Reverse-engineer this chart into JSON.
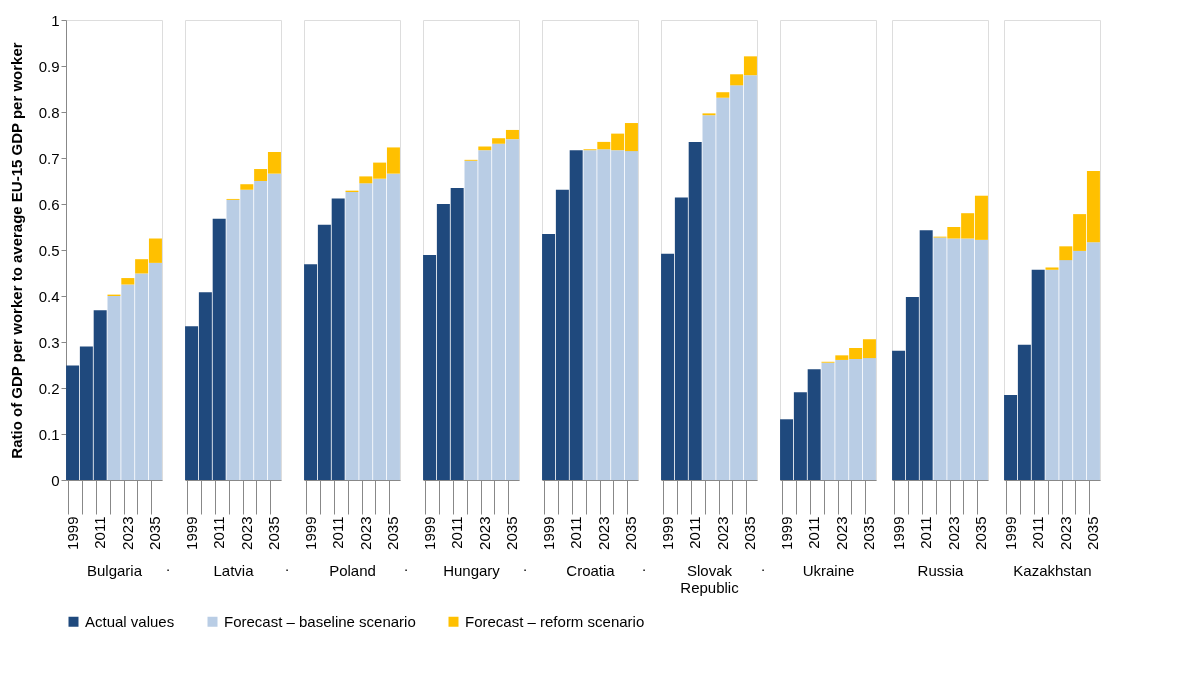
{
  "chart_data": [
    {
      "type": "bar",
      "stacked": true,
      "legend": "bottom",
      "xlabel": "Bulgaria",
      "ylabel": "Ratio of GDP per worker to average EU-15 GDP per worker",
      "ylim": [
        0,
        1
      ],
      "yticks": [
        0,
        0.1,
        0.2,
        0.3,
        0.4,
        0.5,
        0.6,
        0.7,
        0.8,
        0.9,
        1
      ],
      "annotations": [
        "."
      ],
      "categories": [
        "1999",
        null,
        "2011",
        null,
        "2023",
        null,
        "2035"
      ],
      "series": [
        {
          "name": "Actual values",
          "color": "#1f497d",
          "values": [
            0.249,
            0.29,
            0.369,
            null,
            null,
            null,
            null
          ]
        },
        {
          "name": "Forecast – baseline scenario",
          "color": "#b9cde5",
          "values": [
            null,
            null,
            null,
            0.4,
            0.425,
            0.449,
            0.472
          ]
        },
        {
          "name": "Forecast – reform scenario",
          "color": "#ffc000",
          "values": [
            null,
            null,
            null,
            0.003,
            0.014,
            0.031,
            0.053
          ]
        }
      ]
    },
    {
      "type": "bar",
      "stacked": true,
      "legend": "bottom",
      "xlabel": "Latvia",
      "tick_labels": "x",
      "ylim": [
        0,
        1
      ],
      "annotations": [
        "."
      ],
      "categories": [
        "1999",
        null,
        "2011",
        null,
        "2023",
        null,
        "2035"
      ],
      "series": [
        {
          "name": "Actual values",
          "color": "#1f497d",
          "values": [
            0.334,
            0.408,
            0.568,
            null,
            null,
            null,
            null
          ]
        },
        {
          "name": "Forecast – baseline scenario",
          "color": "#b9cde5",
          "values": [
            null,
            null,
            null,
            0.609,
            0.631,
            0.65,
            0.666
          ]
        },
        {
          "name": "Forecast – reform scenario",
          "color": "#ffc000",
          "values": [
            null,
            null,
            null,
            0.002,
            0.012,
            0.026,
            0.047
          ]
        }
      ]
    },
    {
      "type": "bar",
      "stacked": true,
      "legend": "bottom",
      "xlabel": "Poland",
      "tick_labels": "x",
      "ylim": [
        0,
        1
      ],
      "annotations": [
        "."
      ],
      "categories": [
        "1999",
        null,
        "2011",
        null,
        "2023",
        null,
        "2035"
      ],
      "series": [
        {
          "name": "Actual values",
          "color": "#1f497d",
          "values": [
            0.469,
            0.555,
            0.612,
            null,
            null,
            null,
            null
          ]
        },
        {
          "name": "Forecast – baseline scenario",
          "color": "#b9cde5",
          "values": [
            null,
            null,
            null,
            0.626,
            0.645,
            0.655,
            0.666
          ]
        },
        {
          "name": "Forecast – reform scenario",
          "color": "#ffc000",
          "values": [
            null,
            null,
            null,
            0.003,
            0.015,
            0.035,
            0.057
          ]
        }
      ]
    },
    {
      "type": "bar",
      "stacked": true,
      "legend": "bottom",
      "xlabel": "Hungary",
      "tick_labels": "x",
      "ylim": [
        0,
        1
      ],
      "annotations": [
        "."
      ],
      "categories": [
        "1999",
        null,
        "2011",
        null,
        "2023",
        null,
        "2035"
      ],
      "series": [
        {
          "name": "Actual values",
          "color": "#1f497d",
          "values": [
            0.489,
            0.6,
            0.635,
            null,
            null,
            null,
            null
          ]
        },
        {
          "name": "Forecast – baseline scenario",
          "color": "#b9cde5",
          "values": [
            null,
            null,
            null,
            0.694,
            0.717,
            0.731,
            0.741
          ]
        },
        {
          "name": "Forecast – reform scenario",
          "color": "#ffc000",
          "values": [
            null,
            null,
            null,
            0.002,
            0.008,
            0.012,
            0.02
          ]
        }
      ]
    },
    {
      "type": "bar",
      "stacked": true,
      "legend": "bottom",
      "xlabel": "Croatia",
      "tick_labels": "x",
      "ylim": [
        0,
        1
      ],
      "annotations": [
        "."
      ],
      "categories": [
        "1999",
        null,
        "2011",
        null,
        "2023",
        null,
        "2035"
      ],
      "series": [
        {
          "name": "Actual values",
          "color": "#1f497d",
          "values": [
            0.535,
            0.631,
            0.717,
            null,
            null,
            null,
            null
          ]
        },
        {
          "name": "Forecast – baseline scenario",
          "color": "#b9cde5",
          "values": [
            null,
            null,
            null,
            0.717,
            0.719,
            0.717,
            0.715
          ]
        },
        {
          "name": "Forecast – reform scenario",
          "color": "#ffc000",
          "values": [
            null,
            null,
            null,
            0.002,
            0.016,
            0.036,
            0.061
          ]
        }
      ]
    },
    {
      "type": "bar",
      "stacked": true,
      "legend": "bottom",
      "xlabel": "Slovak Republic",
      "tick_labels": "x",
      "ylim": [
        0,
        1
      ],
      "annotations": [
        "."
      ],
      "categories": [
        "1999",
        null,
        "2011",
        null,
        "2023",
        null,
        "2035"
      ],
      "series": [
        {
          "name": "Actual values",
          "color": "#1f497d",
          "values": [
            0.492,
            0.614,
            0.735,
            null,
            null,
            null,
            null
          ]
        },
        {
          "name": "Forecast – baseline scenario",
          "color": "#b9cde5",
          "values": [
            null,
            null,
            null,
            0.793,
            0.831,
            0.858,
            0.88
          ]
        },
        {
          "name": "Forecast – reform scenario",
          "color": "#ffc000",
          "values": [
            null,
            null,
            null,
            0.004,
            0.012,
            0.024,
            0.041
          ]
        }
      ]
    },
    {
      "type": "bar",
      "stacked": true,
      "legend": "bottom",
      "xlabel": "Ukraine",
      "tick_labels": "x",
      "ylim": [
        0,
        1
      ],
      "categories": [
        "1999",
        null,
        "2011",
        null,
        "2023",
        null,
        "2035"
      ],
      "series": [
        {
          "name": "Actual values",
          "color": "#1f497d",
          "values": [
            0.132,
            0.191,
            0.241,
            null,
            null,
            null,
            null
          ]
        },
        {
          "name": "Forecast – baseline scenario",
          "color": "#b9cde5",
          "values": [
            null,
            null,
            null,
            0.255,
            0.261,
            0.263,
            0.265
          ]
        },
        {
          "name": "Forecast – reform scenario",
          "color": "#ffc000",
          "values": [
            null,
            null,
            null,
            0.002,
            0.01,
            0.024,
            0.041
          ]
        }
      ]
    },
    {
      "type": "bar",
      "stacked": true,
      "legend": "bottom",
      "xlabel": "Russia",
      "tick_labels": "x",
      "ylim": [
        0,
        1
      ],
      "categories": [
        "1999",
        null,
        "2011",
        null,
        "2023",
        null,
        "2035"
      ],
      "series": [
        {
          "name": "Actual values",
          "color": "#1f497d",
          "values": [
            0.281,
            0.398,
            0.543,
            null,
            null,
            null,
            null
          ]
        },
        {
          "name": "Forecast – baseline scenario",
          "color": "#b9cde5",
          "values": [
            null,
            null,
            null,
            0.527,
            0.525,
            0.525,
            0.522
          ]
        },
        {
          "name": "Forecast – reform scenario",
          "color": "#ffc000",
          "values": [
            null,
            null,
            null,
            0.002,
            0.025,
            0.055,
            0.096
          ]
        }
      ]
    },
    {
      "type": "bar",
      "stacked": true,
      "legend": "bottom",
      "xlabel": "Kazakhstan",
      "tick_labels": "x",
      "ylim": [
        0,
        1
      ],
      "categories": [
        "1999",
        null,
        "2011",
        null,
        "2023",
        null,
        "2035"
      ],
      "series": [
        {
          "name": "Actual values",
          "color": "#1f497d",
          "values": [
            0.185,
            0.294,
            0.457,
            null,
            null,
            null,
            null
          ]
        },
        {
          "name": "Forecast – baseline scenario",
          "color": "#b9cde5",
          "values": [
            null,
            null,
            null,
            0.457,
            0.478,
            0.498,
            0.517
          ]
        },
        {
          "name": "Forecast – reform scenario",
          "color": "#ffc000",
          "values": [
            null,
            null,
            null,
            0.005,
            0.03,
            0.08,
            0.155
          ]
        }
      ]
    }
  ]
}
